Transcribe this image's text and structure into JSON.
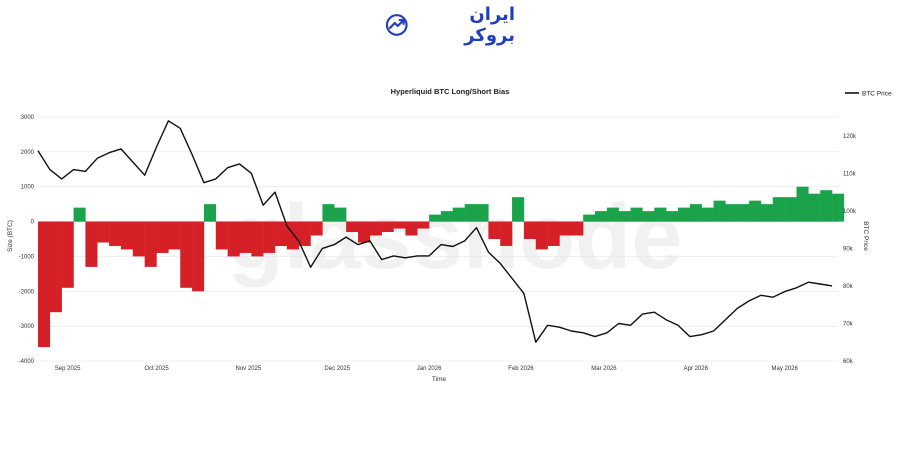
{
  "logo": {
    "text": "ایران بروکر",
    "accent": "#1f3fbf"
  },
  "watermark": "glassnode",
  "chart_data": {
    "type": "bar+line",
    "title": "Hyperliquid BTC Long/Short Bias",
    "xlabel": "Time",
    "ylabel_left": "Size (BTC)",
    "ylabel_right": "BTC Price",
    "legend": {
      "label": "BTC Price",
      "position": "top-right"
    },
    "x_ticks": [
      "Sep 2025",
      "Oct 2025",
      "Nov 2025",
      "Dec 2025",
      "Jan 2026",
      "Feb 2026",
      "Mar 2026",
      "Apr 2026",
      "May 2026"
    ],
    "x_range": [
      "2025-08-22",
      "2026-05-19"
    ],
    "y_left": {
      "ticks": [
        3000,
        2000,
        1000,
        0,
        -1000,
        -2000,
        -3000,
        -4000
      ],
      "labels": [
        "3000",
        "2000",
        "1000",
        "0",
        "-1000",
        "-2000",
        "-3000",
        "-4000"
      ],
      "lim": [
        -4000,
        3000
      ]
    },
    "y_right": {
      "ticks": [
        120000,
        110000,
        100000,
        90000,
        80000,
        70000,
        60000
      ],
      "labels": [
        "120k",
        "110k",
        "100k",
        "90k",
        "80k",
        "70k",
        "60k"
      ],
      "lim": [
        60000,
        125000
      ]
    },
    "colors": {
      "positive": "#1aa34a",
      "negative": "#d62027",
      "price": "#111111",
      "grid": "#e6e6e6"
    },
    "bias_series": {
      "name": "Size (BTC)",
      "points": [
        [
          "2025-08-22",
          -3600
        ],
        [
          "2025-08-26",
          -2600
        ],
        [
          "2025-08-30",
          -1900
        ],
        [
          "2025-09-03",
          400
        ],
        [
          "2025-09-07",
          -1300
        ],
        [
          "2025-09-11",
          -600
        ],
        [
          "2025-09-15",
          -700
        ],
        [
          "2025-09-19",
          -800
        ],
        [
          "2025-09-23",
          -1000
        ],
        [
          "2025-09-27",
          -1300
        ],
        [
          "2025-10-01",
          -900
        ],
        [
          "2025-10-05",
          -800
        ],
        [
          "2025-10-09",
          -1900
        ],
        [
          "2025-10-13",
          -2000
        ],
        [
          "2025-10-17",
          500
        ],
        [
          "2025-10-21",
          -800
        ],
        [
          "2025-10-25",
          -1000
        ],
        [
          "2025-10-29",
          -900
        ],
        [
          "2025-11-02",
          -1000
        ],
        [
          "2025-11-06",
          -900
        ],
        [
          "2025-11-10",
          -700
        ],
        [
          "2025-11-14",
          -800
        ],
        [
          "2025-11-18",
          -700
        ],
        [
          "2025-11-22",
          -400
        ],
        [
          "2025-11-26",
          500
        ],
        [
          "2025-11-30",
          400
        ],
        [
          "2025-12-04",
          -300
        ],
        [
          "2025-12-08",
          -600
        ],
        [
          "2025-12-12",
          -400
        ],
        [
          "2025-12-16",
          -300
        ],
        [
          "2025-12-20",
          -200
        ],
        [
          "2025-12-24",
          -400
        ],
        [
          "2025-12-28",
          -200
        ],
        [
          "2026-01-01",
          200
        ],
        [
          "2026-01-05",
          300
        ],
        [
          "2026-01-09",
          400
        ],
        [
          "2026-01-13",
          500
        ],
        [
          "2026-01-17",
          500
        ],
        [
          "2026-01-21",
          -500
        ],
        [
          "2026-01-25",
          -700
        ],
        [
          "2026-01-29",
          700
        ],
        [
          "2026-02-02",
          -500
        ],
        [
          "2026-02-06",
          -800
        ],
        [
          "2026-02-10",
          -700
        ],
        [
          "2026-02-14",
          -400
        ],
        [
          "2026-02-18",
          -400
        ],
        [
          "2026-02-22",
          200
        ],
        [
          "2026-02-26",
          300
        ],
        [
          "2026-03-02",
          400
        ],
        [
          "2026-03-06",
          300
        ],
        [
          "2026-03-10",
          400
        ],
        [
          "2026-03-14",
          300
        ],
        [
          "2026-03-18",
          400
        ],
        [
          "2026-03-22",
          300
        ],
        [
          "2026-03-26",
          400
        ],
        [
          "2026-03-30",
          500
        ],
        [
          "2026-04-03",
          400
        ],
        [
          "2026-04-07",
          600
        ],
        [
          "2026-04-11",
          500
        ],
        [
          "2026-04-15",
          500
        ],
        [
          "2026-04-19",
          600
        ],
        [
          "2026-04-23",
          500
        ],
        [
          "2026-04-27",
          700
        ],
        [
          "2026-05-01",
          700
        ],
        [
          "2026-05-05",
          1000
        ],
        [
          "2026-05-09",
          800
        ],
        [
          "2026-05-13",
          900
        ],
        [
          "2026-05-17",
          800
        ]
      ]
    },
    "price_series": {
      "name": "BTC Price",
      "points": [
        [
          "2025-08-22",
          116000
        ],
        [
          "2025-08-26",
          111000
        ],
        [
          "2025-08-30",
          108500
        ],
        [
          "2025-09-03",
          111000
        ],
        [
          "2025-09-07",
          110500
        ],
        [
          "2025-09-11",
          114000
        ],
        [
          "2025-09-15",
          115500
        ],
        [
          "2025-09-19",
          116500
        ],
        [
          "2025-09-23",
          113000
        ],
        [
          "2025-09-27",
          109500
        ],
        [
          "2025-10-01",
          117000
        ],
        [
          "2025-10-05",
          124000
        ],
        [
          "2025-10-09",
          122000
        ],
        [
          "2025-10-13",
          115000
        ],
        [
          "2025-10-17",
          107500
        ],
        [
          "2025-10-21",
          108500
        ],
        [
          "2025-10-25",
          111500
        ],
        [
          "2025-10-29",
          112500
        ],
        [
          "2025-11-02",
          110000
        ],
        [
          "2025-11-06",
          101500
        ],
        [
          "2025-11-10",
          105000
        ],
        [
          "2025-11-14",
          96000
        ],
        [
          "2025-11-18",
          92000
        ],
        [
          "2025-11-22",
          85000
        ],
        [
          "2025-11-26",
          90000
        ],
        [
          "2025-11-30",
          91000
        ],
        [
          "2025-12-04",
          93000
        ],
        [
          "2025-12-08",
          91000
        ],
        [
          "2025-12-12",
          92000
        ],
        [
          "2025-12-16",
          87000
        ],
        [
          "2025-12-20",
          88000
        ],
        [
          "2025-12-24",
          87500
        ],
        [
          "2025-12-28",
          88000
        ],
        [
          "2026-01-01",
          88000
        ],
        [
          "2026-01-05",
          91000
        ],
        [
          "2026-01-09",
          90500
        ],
        [
          "2026-01-13",
          92000
        ],
        [
          "2026-01-17",
          95500
        ],
        [
          "2026-01-21",
          89000
        ],
        [
          "2026-01-25",
          86000
        ],
        [
          "2026-01-29",
          82000
        ],
        [
          "2026-02-02",
          78000
        ],
        [
          "2026-02-06",
          65000
        ],
        [
          "2026-02-10",
          69500
        ],
        [
          "2026-02-14",
          69000
        ],
        [
          "2026-02-18",
          68000
        ],
        [
          "2026-02-22",
          67500
        ],
        [
          "2026-02-26",
          66500
        ],
        [
          "2026-03-02",
          67500
        ],
        [
          "2026-03-06",
          70000
        ],
        [
          "2026-03-10",
          69500
        ],
        [
          "2026-03-14",
          72500
        ],
        [
          "2026-03-18",
          73000
        ],
        [
          "2026-03-22",
          71000
        ],
        [
          "2026-03-26",
          69500
        ],
        [
          "2026-03-30",
          66500
        ],
        [
          "2026-04-03",
          67000
        ],
        [
          "2026-04-07",
          68000
        ],
        [
          "2026-04-11",
          71000
        ],
        [
          "2026-04-15",
          74000
        ],
        [
          "2026-04-19",
          76000
        ],
        [
          "2026-04-23",
          77500
        ],
        [
          "2026-04-27",
          77000
        ],
        [
          "2026-05-01",
          78500
        ],
        [
          "2026-05-05",
          79500
        ],
        [
          "2026-05-09",
          81000
        ],
        [
          "2026-05-13",
          80500
        ],
        [
          "2026-05-17",
          80000
        ]
      ]
    }
  }
}
